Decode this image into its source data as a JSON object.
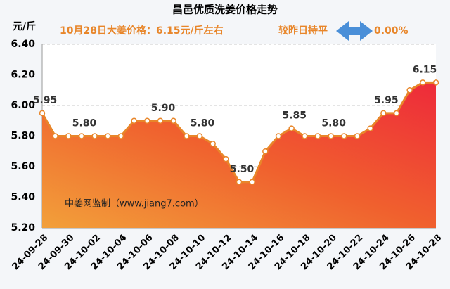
{
  "chart_data": {
    "type": "line",
    "title": "昌邑优质洗姜价格走势",
    "y_unit": "元/斤",
    "annotations": [
      "10月28日大姜价格：6.15元/斤左右",
      "较昨日持平",
      "0.00%",
      "中姜网监制（www.jiang7.com）"
    ],
    "categories": [
      "24-09-28",
      null,
      "24-09-30",
      null,
      "24-10-02",
      null,
      "24-10-04",
      null,
      "24-10-06",
      null,
      "24-10-08",
      null,
      "24-10-10",
      null,
      "24-10-12",
      null,
      "24-10-14",
      null,
      "24-10-16",
      null,
      "24-10-18",
      null,
      "24-10-20",
      null,
      "24-10-22",
      null,
      "24-10-24",
      null,
      "24-10-26",
      null,
      "24-10-28"
    ],
    "values": [
      5.95,
      5.8,
      5.8,
      5.8,
      5.8,
      5.8,
      5.8,
      5.9,
      5.9,
      5.9,
      5.9,
      5.8,
      5.8,
      5.75,
      5.65,
      5.5,
      5.5,
      5.7,
      5.8,
      5.85,
      5.8,
      5.8,
      5.8,
      5.8,
      5.8,
      5.85,
      5.95,
      5.95,
      6.1,
      6.15,
      6.15
    ],
    "value_labels": [
      "5.95",
      null,
      null,
      "5.80",
      null,
      null,
      null,
      null,
      null,
      "5.90",
      null,
      null,
      "5.80",
      null,
      null,
      "5.50",
      null,
      null,
      null,
      "5.85",
      null,
      null,
      "5.80",
      null,
      null,
      null,
      "5.95",
      null,
      null,
      "6.15",
      null
    ],
    "color": "#e8862a",
    "ylim": [
      5.2,
      6.4
    ],
    "yticks": [
      {
        "value": 5.2,
        "label": "5.20"
      },
      {
        "value": 5.4,
        "label": "5.40"
      },
      {
        "value": 5.6,
        "label": "5.60"
      },
      {
        "value": 5.8,
        "label": "5.80"
      },
      {
        "value": 6.0,
        "label": "6.00"
      },
      {
        "value": 6.2,
        "label": "6.20"
      },
      {
        "value": 6.4,
        "label": "6.40"
      }
    ],
    "grid": true
  }
}
